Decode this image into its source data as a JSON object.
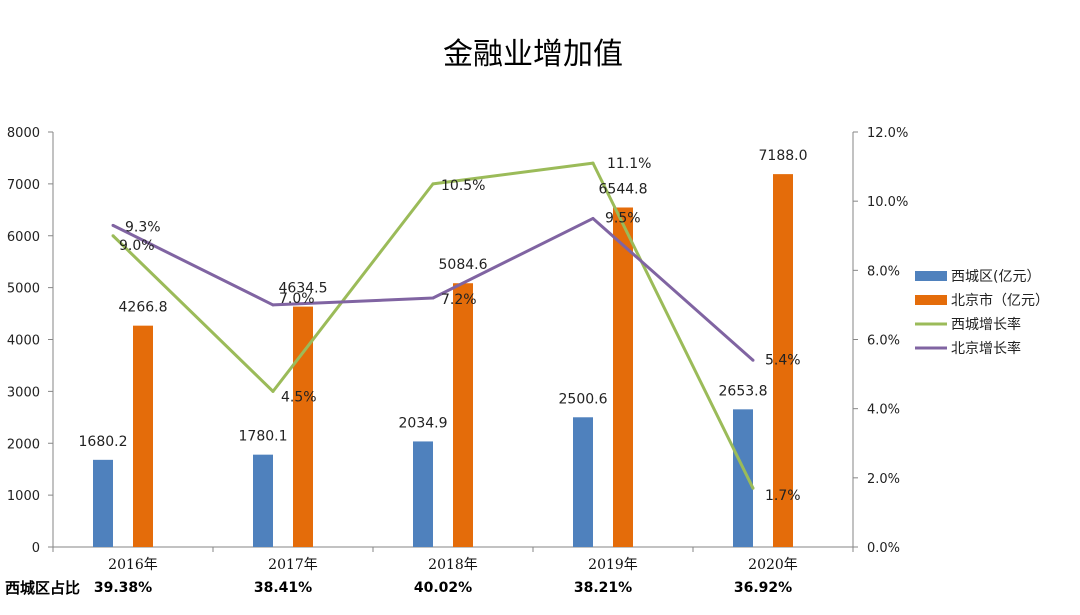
{
  "chart_data": {
    "type": "bar",
    "title": "金融业增加值",
    "categories": [
      "2016年",
      "2017年",
      "2018年",
      "2019年",
      "2020年"
    ],
    "series": [
      {
        "name": "西城区(亿元）",
        "kind": "bar",
        "axis": "left",
        "color": "#4f81bd",
        "values": [
          1680.2,
          1780.1,
          2034.9,
          2500.6,
          2653.8
        ],
        "labels": [
          "1680.2",
          "1780.1",
          "2034.9",
          "2500.6",
          "2653.8"
        ]
      },
      {
        "name": "北京市（亿元）",
        "kind": "bar",
        "axis": "left",
        "color": "#e46c0a",
        "values": [
          4266.8,
          4634.5,
          5084.6,
          6544.8,
          7188.0
        ],
        "labels": [
          "4266.8",
          "4634.5",
          "5084.6",
          "6544.8",
          "7188.0"
        ]
      },
      {
        "name": "西城增长率",
        "kind": "line",
        "axis": "right",
        "color": "#9bbb59",
        "values": [
          9.0,
          4.5,
          10.5,
          11.1,
          1.7
        ],
        "labels": [
          "9.0%",
          "4.5%",
          "10.5%",
          "11.1%",
          "1.7%"
        ]
      },
      {
        "name": "北京增长率",
        "kind": "line",
        "axis": "right",
        "color": "#8064a2",
        "values": [
          9.3,
          7.0,
          7.2,
          9.5,
          5.4
        ],
        "labels": [
          "9.3%",
          "7.0%",
          "7.2%",
          "9.5%",
          "5.4%"
        ]
      }
    ],
    "y_left": {
      "min": 0,
      "max": 8000,
      "ticks": [
        "0",
        "1000",
        "2000",
        "3000",
        "4000",
        "5000",
        "6000",
        "7000",
        "8000"
      ]
    },
    "y_right": {
      "min": 0,
      "max": 12,
      "ticks": [
        "0.0%",
        "2.0%",
        "4.0%",
        "6.0%",
        "8.0%",
        "10.0%",
        "12.0%"
      ]
    },
    "legend_position": "right",
    "grid": false
  },
  "share_row": {
    "label": "西城区占比",
    "values": [
      "39.38%",
      "38.41%",
      "40.02%",
      "38.21%",
      "36.92%"
    ]
  }
}
